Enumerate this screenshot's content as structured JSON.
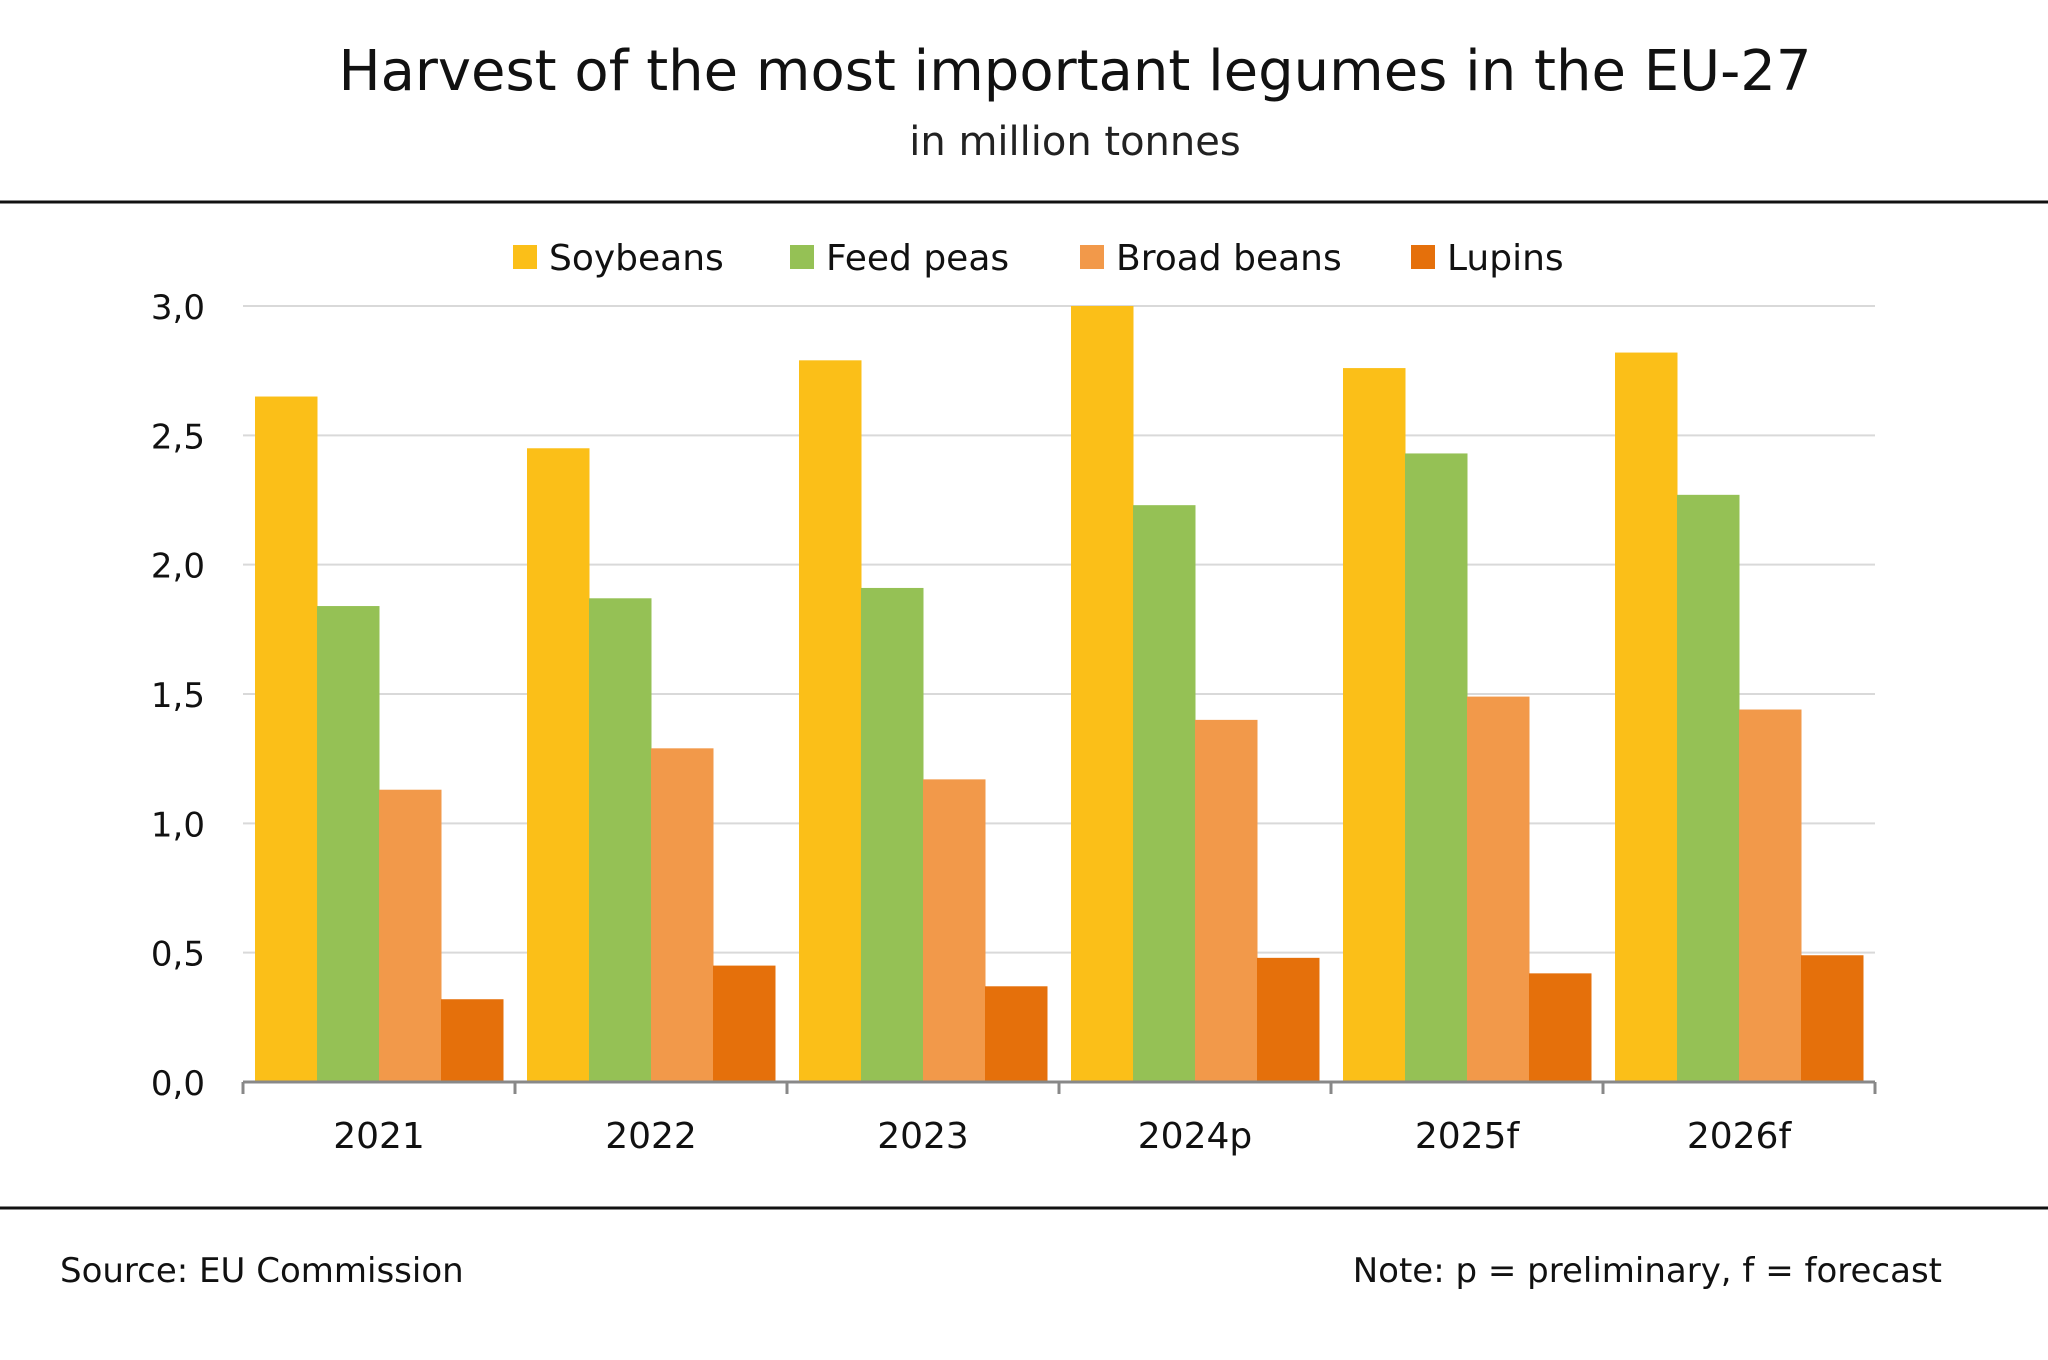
{
  "chart_data": {
    "type": "bar",
    "title": "Harvest of the most important legumes in the EU-27",
    "subtitle": "in million tonnes",
    "categories": [
      "2021",
      "2022",
      "2023",
      "2024p",
      "2025f",
      "2026f"
    ],
    "series": [
      {
        "name": "Soybeans",
        "color": "#FBBF18",
        "values": [
          2.65,
          2.45,
          2.79,
          3.0,
          2.76,
          2.82
        ]
      },
      {
        "name": "Feed peas",
        "color": "#95C155",
        "values": [
          1.84,
          1.87,
          1.91,
          2.23,
          2.43,
          2.27
        ]
      },
      {
        "name": "Broad beans",
        "color": "#F2994A",
        "values": [
          1.13,
          1.29,
          1.17,
          1.4,
          1.49,
          1.44
        ]
      },
      {
        "name": "Lupins",
        "color": "#E5700B",
        "values": [
          0.32,
          0.45,
          0.37,
          0.48,
          0.42,
          0.49
        ]
      }
    ],
    "yticks": [
      "0,0",
      "0,5",
      "1,0",
      "1,5",
      "2,0",
      "2,5",
      "3,0"
    ],
    "ylim": [
      0,
      3
    ],
    "grid": true,
    "legend_position": "top-center",
    "xlabel": "",
    "ylabel": ""
  },
  "footer": {
    "source": "Source: EU Commission",
    "note": "Note: p = preliminary, f = forecast"
  }
}
